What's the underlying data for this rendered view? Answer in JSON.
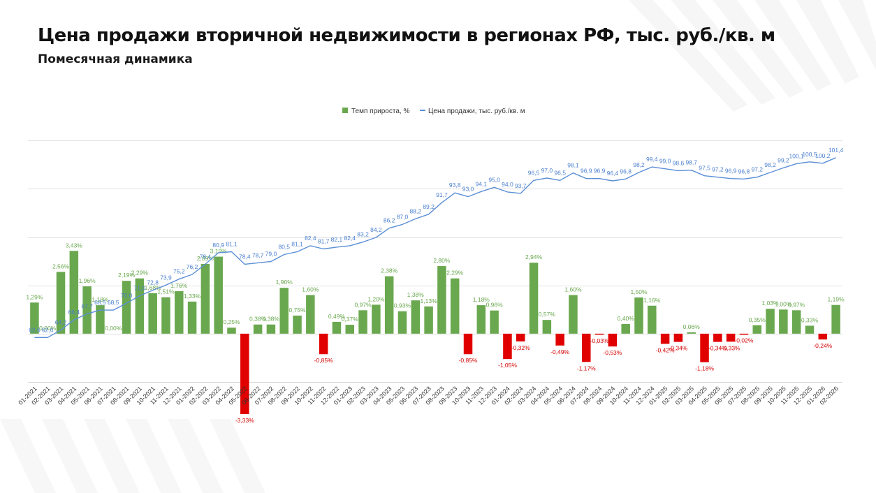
{
  "header": {
    "title": "Цена продажи вторичной недвижимости в регионах РФ, тыс. руб./кв. м",
    "subtitle": "Помесячная динамика"
  },
  "chart_data": {
    "type": "bar",
    "legend_position": "top",
    "grid": true,
    "colors": {
      "bar_positive": "#6aa84f",
      "bar_negative": "#e00000",
      "line": "#5b8fd6",
      "line_label": "#4a7fcf",
      "pos_label": "#6aa84f",
      "neg_label": "#d40000"
    },
    "ylim_growth": [
      -2,
      8.5
    ],
    "ylim_price": [
      53,
      107.7
    ],
    "categories": [
      "01-2021",
      "02-2021",
      "03-2021",
      "04-2021",
      "05-2021",
      "06-2021",
      "07-2021",
      "08-2021",
      "09-2021",
      "10-2021",
      "11-2021",
      "12-2021",
      "01-2022",
      "02-2022",
      "03-2022",
      "04-2022",
      "05-2022",
      "06-2022",
      "07-2022",
      "08-2022",
      "09-2022",
      "10-2022",
      "11-2022",
      "12-2022",
      "01-2023",
      "02-2023",
      "03-2023",
      "04-2023",
      "05-2023",
      "06-2023",
      "07-2023",
      "08-2023",
      "09-2023",
      "10-2023",
      "11-2023",
      "12-2023",
      "01-2024",
      "02-2024",
      "03-2024",
      "04-2024",
      "05-2024",
      "06-2024",
      "07-2024",
      "08-2024",
      "09-2024",
      "10-2024",
      "11-2024",
      "12-2024",
      "01-2025",
      "02-2025",
      "03-2025",
      "04-2025",
      "05-2025",
      "06-2025",
      "07-2025",
      "08-2025",
      "09-2025",
      "10-2025",
      "11-2025",
      "12-2025",
      "01-2026",
      "02-2026"
    ],
    "series": [
      {
        "name": "Темп прироста, %",
        "type": "bar",
        "values": [
          1.29,
          0.0,
          2.56,
          3.43,
          1.96,
          1.18,
          0.0,
          2.19,
          2.29,
          1.68,
          1.51,
          1.76,
          1.33,
          2.89,
          3.19,
          0.25,
          -3.33,
          0.38,
          0.38,
          1.9,
          0.75,
          1.6,
          -0.85,
          0.49,
          0.37,
          0.97,
          1.2,
          2.38,
          0.93,
          1.38,
          1.13,
          2.8,
          2.29,
          -0.85,
          1.18,
          0.96,
          -1.05,
          -0.32,
          2.94,
          0.57,
          -0.49,
          1.6,
          -1.17,
          -0.03,
          -0.53,
          0.4,
          1.5,
          1.16,
          -0.42,
          -0.34,
          0.06,
          -1.18,
          -0.34,
          -0.33,
          -0.02,
          0.35,
          1.03,
          1.0,
          0.97,
          0.33,
          -0.24,
          1.19
        ],
        "labels": [
          "1,29%",
          "0,00%",
          "2,56%",
          "3,43%",
          "1,96%",
          "1,18%",
          "0,00%",
          "2,19%",
          "2,29%",
          "1,68%",
          "1,51%",
          "1,76%",
          "1,33%",
          "2,89%",
          "3,19%",
          "0,25%",
          "-3,33%",
          "0,38%",
          "0,38%",
          "1,90%",
          "0,75%",
          "1,60%",
          "-0,85%",
          "0,49%",
          "0,37%",
          "0,97%",
          "1,20%",
          "2,38%",
          "0,93%",
          "1,38%",
          "1,13%",
          "2,80%",
          "2,29%",
          "-0,85%",
          "1,18%",
          "0,96%",
          "-1,05%",
          "-0,32%",
          "2,94%",
          "0,57%",
          "-0,49%",
          "1,60%",
          "-1,17%",
          "-0,03%",
          "-0,53%",
          "0,40%",
          "1,50%",
          "1,16%",
          "-0,42%",
          "-0,34%",
          "0,06%",
          "-1,18%",
          "-0,34%",
          "-0,33%",
          "-0,02%",
          "0,35%",
          "1,03%",
          "1,00%",
          "0,97%",
          "0,33%",
          "-0,24%",
          "1,19%"
        ]
      },
      {
        "name": "Цена продажи, тыс. руб./кв. м",
        "type": "line",
        "values": [
          62.6,
          62.6,
          64.2,
          66.4,
          67.7,
          68.5,
          68.5,
          70.0,
          71.6,
          72.8,
          73.9,
          75.2,
          76.2,
          78.4,
          80.9,
          81.1,
          78.4,
          78.7,
          79.0,
          80.5,
          81.1,
          82.4,
          81.7,
          82.1,
          82.4,
          83.2,
          84.2,
          86.2,
          87.0,
          88.2,
          89.2,
          91.7,
          93.8,
          93.0,
          94.1,
          95.0,
          94.0,
          93.7,
          96.5,
          97.0,
          96.5,
          98.1,
          96.9,
          96.9,
          96.4,
          96.8,
          98.2,
          99.4,
          99.0,
          98.6,
          98.7,
          97.5,
          97.2,
          96.9,
          96.8,
          97.2,
          98.2,
          99.2,
          100.1,
          100.5,
          100.2,
          101.4
        ],
        "labels": [
          "62,6",
          "62,6",
          "64,2",
          "66,4",
          "67,7",
          "68,5",
          "68,5",
          "70,0",
          "71,6",
          "72,8",
          "73,9",
          "75,2",
          "76,2",
          "78,4",
          "80,9",
          "81,1",
          "78,4",
          "78,7",
          "79,0",
          "80,5",
          "81,1",
          "82,4",
          "81,7",
          "82,1",
          "82,4",
          "83,2",
          "84,2",
          "86,2",
          "87,0",
          "88,2",
          "89,2",
          "91,7",
          "93,8",
          "93,0",
          "94,1",
          "95,0",
          "94,0",
          "93,7",
          "96,5",
          "97,0",
          "96,5",
          "98,1",
          "96,9",
          "96,9",
          "96,4",
          "96,8",
          "98,2",
          "99,4",
          "99,0",
          "98,6",
          "98,7",
          "97,5",
          "97,2",
          "96,9",
          "96,8",
          "97,2",
          "98,2",
          "99,2",
          "100,1",
          "100,5",
          "100,2",
          "101,4"
        ]
      }
    ]
  }
}
